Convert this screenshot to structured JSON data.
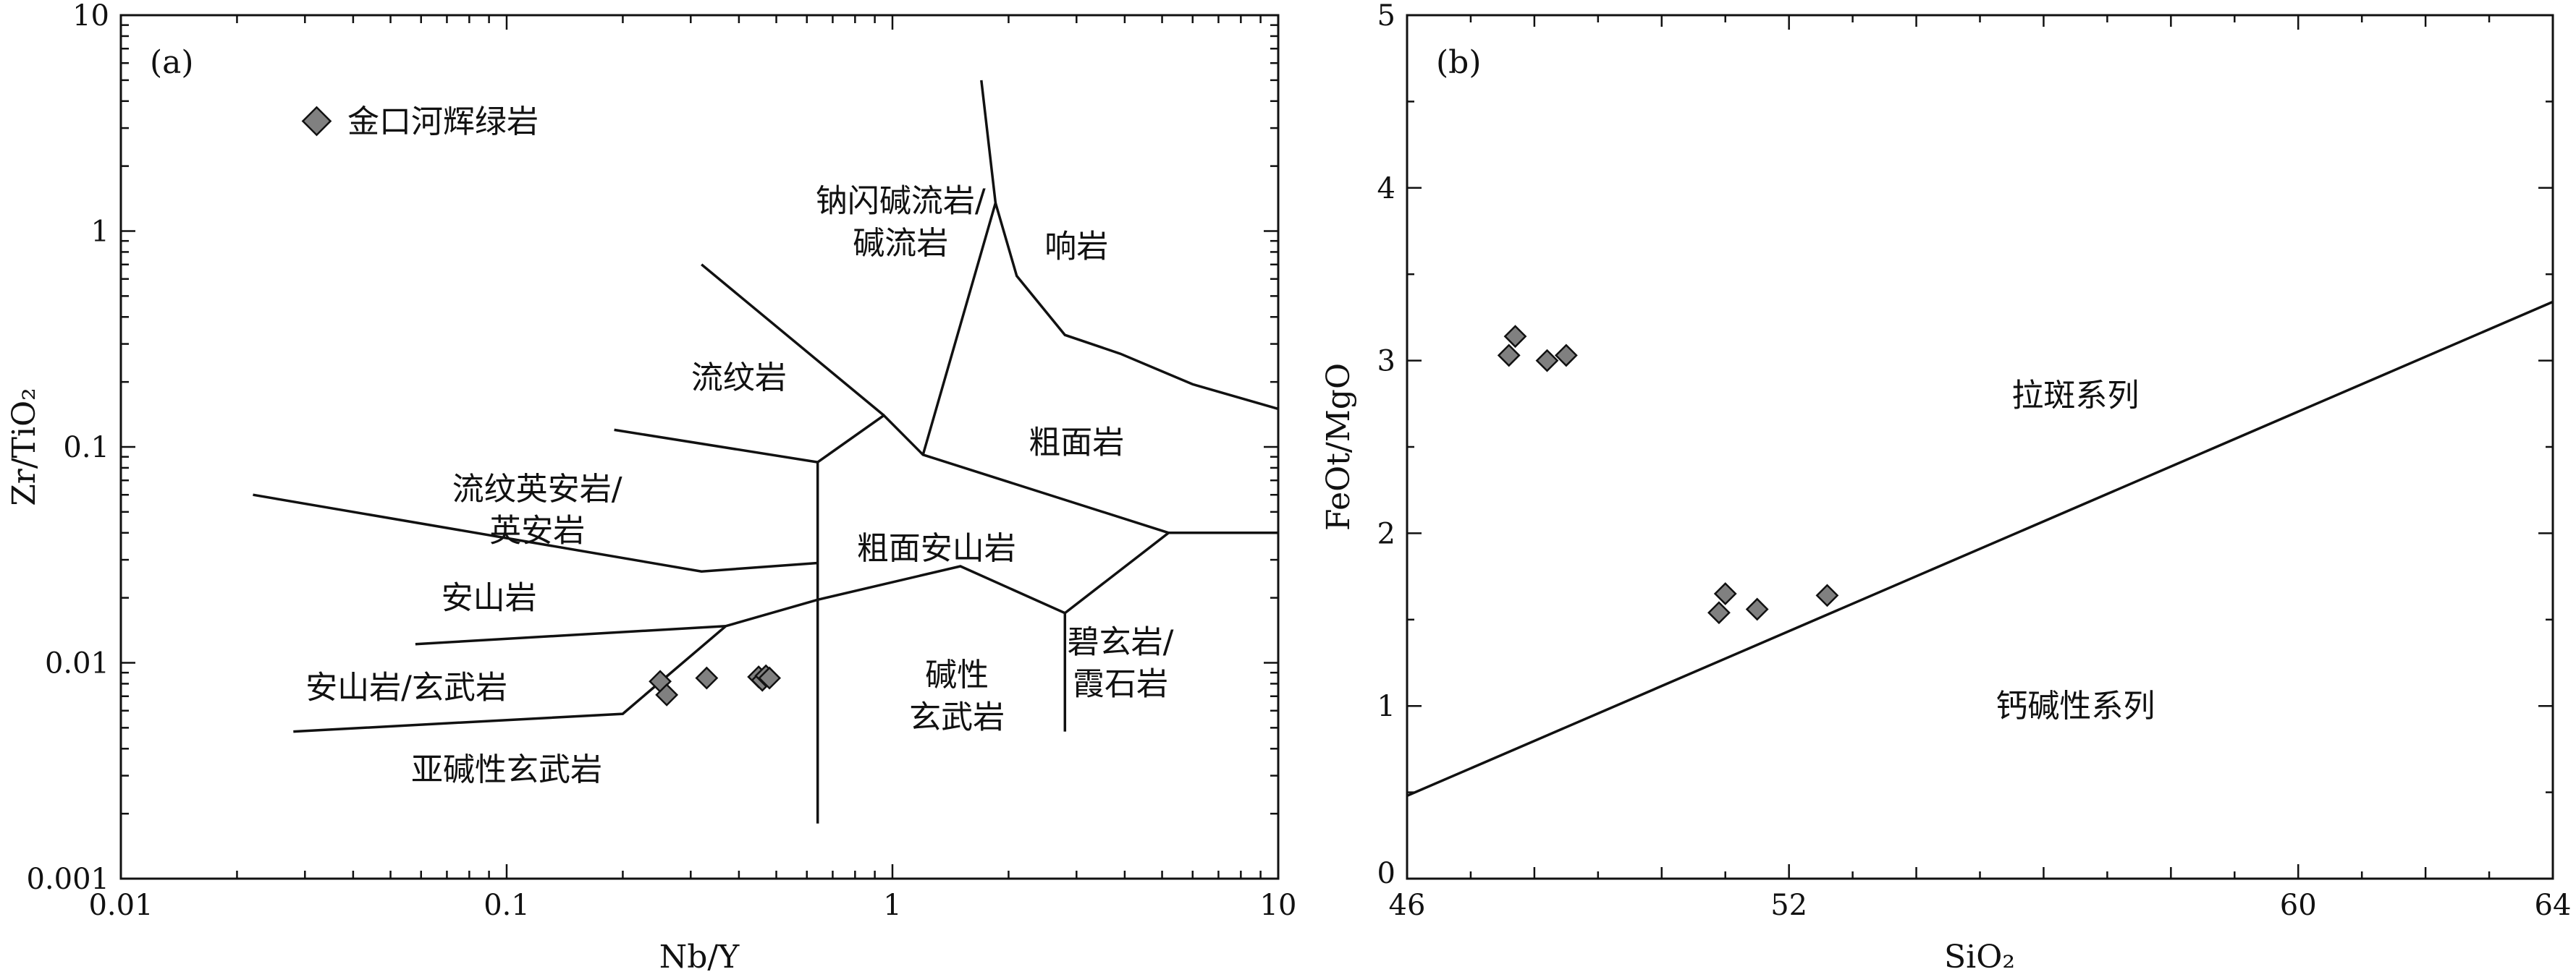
{
  "chart_data": [
    {
      "panel": "(a)",
      "type": "scatter",
      "xlabel": "Nb/Y",
      "ylabel": "Zr/TiO₂",
      "xscale": "log",
      "yscale": "log",
      "xlim": [
        0.01,
        10
      ],
      "ylim": [
        0.001,
        10
      ],
      "x_ticks": [
        "0.01",
        "0.1",
        "1",
        "10"
      ],
      "y_ticks": [
        "0.001",
        "0.01",
        "0.1",
        "1",
        "10"
      ],
      "legend": {
        "label": "金口河辉绿岩",
        "marker": "diamond",
        "color": "#808080",
        "position": "top-left"
      },
      "series": [
        {
          "name": "金口河辉绿岩",
          "x": [
            0.25,
            0.26,
            0.33,
            0.45,
            0.46,
            0.47,
            0.48
          ],
          "y": [
            0.0082,
            0.0071,
            0.0085,
            0.0086,
            0.0083,
            0.0087,
            0.0085
          ]
        }
      ],
      "boundaries": [
        [
          [
            0.022,
            0.06
          ],
          [
            0.32,
            0.0265
          ],
          [
            0.64,
            0.029
          ]
        ],
        [
          [
            0.058,
            0.0122
          ],
          [
            0.37,
            0.0148
          ]
        ],
        [
          [
            0.028,
            0.0048
          ],
          [
            0.2,
            0.0058
          ],
          [
            0.37,
            0.0148
          ],
          [
            0.64,
            0.0196
          ],
          [
            1.5,
            0.028
          ],
          [
            2.8,
            0.017
          ],
          [
            5.2,
            0.04
          ],
          [
            10,
            0.04
          ]
        ],
        [
          [
            0.64,
            0.0018
          ],
          [
            0.64,
            0.085
          ],
          [
            0.95,
            0.14
          ],
          [
            1.2,
            0.092
          ],
          [
            5.2,
            0.04
          ]
        ],
        [
          [
            0.19,
            0.12
          ],
          [
            0.64,
            0.085
          ]
        ],
        [
          [
            0.32,
            0.7
          ],
          [
            0.95,
            0.14
          ]
        ],
        [
          [
            1.2,
            0.092
          ],
          [
            1.85,
            1.35
          ],
          [
            1.7,
            5
          ]
        ],
        [
          [
            1.85,
            1.35
          ],
          [
            2.1,
            0.62
          ],
          [
            2.8,
            0.33
          ],
          [
            3.9,
            0.27
          ],
          [
            6,
            0.195
          ],
          [
            10,
            0.15
          ]
        ],
        [
          [
            2.8,
            0.017
          ],
          [
            2.8,
            0.0048
          ]
        ]
      ],
      "field_labels": [
        {
          "text": "钠闪碱流岩/",
          "x": 1.05,
          "y": 1.38
        },
        {
          "text": "碱流岩",
          "x": 1.05,
          "y": 0.88
        },
        {
          "text": "响岩",
          "x": 3.0,
          "y": 0.85
        },
        {
          "text": "流纹岩",
          "x": 0.4,
          "y": 0.21
        },
        {
          "text": "粗面岩",
          "x": 3.0,
          "y": 0.105
        },
        {
          "text": "流纹英安岩/",
          "x": 0.12,
          "y": 0.064
        },
        {
          "text": "英安岩",
          "x": 0.12,
          "y": 0.041
        },
        {
          "text": "粗面安山岩",
          "x": 1.3,
          "y": 0.034
        },
        {
          "text": "安山岩",
          "x": 0.09,
          "y": 0.02
        },
        {
          "text": "碧玄岩/",
          "x": 3.9,
          "y": 0.0125
        },
        {
          "text": "霞石岩",
          "x": 3.9,
          "y": 0.008
        },
        {
          "text": "碱性",
          "x": 1.47,
          "y": 0.0088
        },
        {
          "text": "玄武岩",
          "x": 1.47,
          "y": 0.0056
        },
        {
          "text": "安山岩/玄武岩",
          "x": 0.055,
          "y": 0.0077
        },
        {
          "text": "亚碱性玄武岩",
          "x": 0.1,
          "y": 0.0032
        }
      ]
    },
    {
      "panel": "(b)",
      "type": "scatter",
      "xlabel": "SiO₂",
      "ylabel": "FeOt/MgO",
      "xlim": [
        46,
        64
      ],
      "ylim": [
        0,
        5
      ],
      "x_ticks": [
        "46",
        "52",
        "60",
        "64"
      ],
      "y_ticks": [
        "0",
        "1",
        "2",
        "3",
        "4",
        "5"
      ],
      "series": [
        {
          "name": "金口河辉绿岩",
          "x": [
            47.6,
            47.7,
            48.2,
            48.5,
            50.9,
            51.0,
            51.5,
            52.6
          ],
          "y": [
            3.03,
            3.14,
            3.0,
            3.03,
            1.54,
            1.65,
            1.56,
            1.64
          ]
        }
      ],
      "boundaries": [
        [
          [
            46,
            0.48
          ],
          [
            64,
            3.34
          ]
        ]
      ],
      "field_labels": [
        {
          "text": "拉斑系列",
          "x": 56.5,
          "y": 2.8
        },
        {
          "text": "钙碱性系列",
          "x": 56.5,
          "y": 1.0
        }
      ]
    }
  ]
}
